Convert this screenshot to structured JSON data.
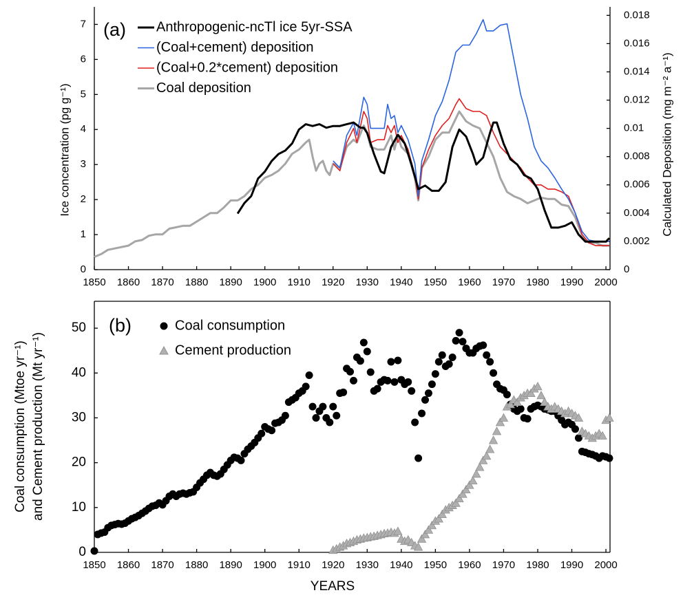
{
  "chart_data": [
    {
      "type": "line",
      "panel_label": "(a)",
      "ylabel": "Ice concentration (pg g⁻¹)",
      "y2label": "Calculated Deposition (mg m⁻² a⁻¹)",
      "xlim": [
        1850,
        2001.2
      ],
      "xticks": [
        1850,
        1860,
        1870,
        1880,
        1890,
        1900,
        1910,
        1920,
        1930,
        1940,
        1950,
        1960,
        1970,
        1980,
        1990,
        2000
      ],
      "ylim": [
        0,
        7.5
      ],
      "yticks": [
        0,
        1,
        2,
        3,
        4,
        5,
        6,
        7
      ],
      "y2lim": [
        0,
        0.0186
      ],
      "y2ticks": [
        0,
        0.002,
        0.004,
        0.006,
        0.008,
        0.01,
        0.012,
        0.014,
        0.016,
        0.018
      ],
      "legend": "upper left",
      "series": [
        {
          "name": "Anthropogenic-ncTl ice 5yr-SSA",
          "color": "#000000",
          "axis": "y",
          "x": [
            1892,
            1894,
            1896,
            1898,
            1900,
            1902,
            1904,
            1906,
            1908,
            1910,
            1912,
            1914,
            1916,
            1918,
            1920,
            1922,
            1924,
            1926,
            1928,
            1929,
            1930,
            1932,
            1934,
            1935,
            1937,
            1939,
            1941,
            1943,
            1945,
            1947,
            1949,
            1951,
            1953,
            1955,
            1957,
            1959,
            1961,
            1962,
            1964,
            1966,
            1967,
            1968,
            1970,
            1972,
            1974,
            1976,
            1978,
            1980,
            1982,
            1984,
            1986,
            1988,
            1990,
            1992,
            1994,
            1996,
            1998,
            2000,
            2001
          ],
          "values": [
            1.6,
            1.9,
            2.1,
            2.6,
            2.8,
            3.1,
            3.3,
            3.4,
            3.6,
            4.0,
            4.15,
            4.1,
            4.15,
            4.05,
            4.1,
            4.1,
            4.15,
            4.2,
            4.05,
            4.05,
            3.9,
            3.3,
            2.8,
            2.75,
            3.5,
            3.85,
            3.6,
            3.0,
            2.3,
            2.4,
            2.25,
            2.25,
            2.5,
            3.5,
            4.0,
            3.8,
            3.3,
            3.0,
            3.2,
            3.9,
            4.2,
            4.2,
            3.6,
            3.15,
            3.0,
            2.7,
            2.6,
            2.3,
            1.7,
            1.2,
            1.2,
            1.25,
            1.35,
            1.0,
            0.8,
            0.8,
            0.8,
            0.8,
            0.9
          ]
        },
        {
          "name": "(Coal+cement) deposition",
          "color": "#2a64e0",
          "axis": "y2",
          "x": [
            1920,
            1922,
            1924,
            1926,
            1927,
            1929,
            1930,
            1931,
            1933,
            1935,
            1936,
            1937,
            1938,
            1939,
            1940,
            1942,
            1944,
            1945,
            1946,
            1948,
            1950,
            1952,
            1954,
            1956,
            1958,
            1960,
            1962,
            1964,
            1965,
            1967,
            1969,
            1971,
            1973,
            1975,
            1977,
            1979,
            1981,
            1983,
            1985,
            1987,
            1989,
            1991,
            1993,
            1995,
            1997,
            1999,
            2001
          ],
          "values": [
            0.0077,
            0.0072,
            0.0095,
            0.0104,
            0.0095,
            0.0122,
            0.0117,
            0.01,
            0.01,
            0.01,
            0.0117,
            0.0107,
            0.0109,
            0.0097,
            0.0102,
            0.0092,
            0.0075,
            0.0052,
            0.0077,
            0.0092,
            0.0109,
            0.0119,
            0.0134,
            0.0154,
            0.0159,
            0.0159,
            0.0167,
            0.0177,
            0.0169,
            0.0169,
            0.0173,
            0.0174,
            0.0149,
            0.0124,
            0.0107,
            0.0087,
            0.0077,
            0.0072,
            0.0065,
            0.0057,
            0.005,
            0.004,
            0.0027,
            0.0021,
            0.002,
            0.002,
            0.002
          ]
        },
        {
          "name": "(Coal+0.2*cement) deposition",
          "color": "#e01f1f",
          "axis": "y2",
          "x": [
            1920,
            1922,
            1924,
            1926,
            1927,
            1929,
            1930,
            1931,
            1933,
            1935,
            1936,
            1937,
            1938,
            1939,
            1940,
            1942,
            1944,
            1945,
            1946,
            1948,
            1950,
            1952,
            1954,
            1956,
            1957,
            1959,
            1961,
            1963,
            1965,
            1967,
            1969,
            1971,
            1973,
            1975,
            1977,
            1979,
            1981,
            1983,
            1985,
            1987,
            1989,
            1991,
            1993,
            1995,
            1997,
            1999,
            2001
          ],
          "values": [
            0.0075,
            0.007,
            0.009,
            0.01,
            0.009,
            0.0112,
            0.0107,
            0.009,
            0.0092,
            0.0092,
            0.0102,
            0.0097,
            0.0102,
            0.009,
            0.0095,
            0.0085,
            0.0067,
            0.005,
            0.0072,
            0.0085,
            0.0095,
            0.0102,
            0.0107,
            0.0117,
            0.0121,
            0.0114,
            0.0112,
            0.0112,
            0.0109,
            0.0097,
            0.0087,
            0.0082,
            0.0077,
            0.0072,
            0.0065,
            0.006,
            0.006,
            0.0057,
            0.0057,
            0.0055,
            0.0052,
            0.004,
            0.0025,
            0.0019,
            0.0017,
            0.0017,
            0.0017
          ]
        },
        {
          "name": "Coal deposition",
          "color": "#a6a6a6",
          "axis": "y2",
          "x": [
            1850,
            1852,
            1854,
            1856,
            1858,
            1860,
            1862,
            1864,
            1866,
            1868,
            1870,
            1872,
            1874,
            1876,
            1878,
            1880,
            1882,
            1884,
            1886,
            1888,
            1890,
            1892,
            1894,
            1896,
            1898,
            1900,
            1902,
            1904,
            1906,
            1908,
            1910,
            1912,
            1913,
            1914,
            1915,
            1916,
            1917,
            1918,
            1919,
            1920,
            1922,
            1924,
            1926,
            1927,
            1929,
            1930,
            1931,
            1933,
            1935,
            1937,
            1938,
            1939,
            1940,
            1942,
            1944,
            1945,
            1946,
            1948,
            1950,
            1952,
            1954,
            1956,
            1957,
            1959,
            1961,
            1963,
            1965,
            1967,
            1969,
            1971,
            1973,
            1975,
            1977,
            1979,
            1981,
            1983,
            1985,
            1987,
            1989,
            1991,
            1993,
            1995,
            1997,
            1999,
            2001
          ],
          "values": [
            0.0009,
            0.0011,
            0.0014,
            0.0015,
            0.0016,
            0.0017,
            0.002,
            0.0021,
            0.0024,
            0.0025,
            0.0025,
            0.0029,
            0.003,
            0.0031,
            0.0031,
            0.0034,
            0.0037,
            0.004,
            0.004,
            0.0044,
            0.0049,
            0.0049,
            0.0052,
            0.0057,
            0.006,
            0.0065,
            0.0067,
            0.007,
            0.0075,
            0.0082,
            0.0085,
            0.009,
            0.0092,
            0.008,
            0.007,
            0.0075,
            0.0077,
            0.007,
            0.0067,
            0.0075,
            0.0072,
            0.0087,
            0.0092,
            0.009,
            0.0102,
            0.0097,
            0.0087,
            0.0085,
            0.0085,
            0.0095,
            0.0085,
            0.0095,
            0.0087,
            0.0082,
            0.0065,
            0.0049,
            0.0072,
            0.008,
            0.0092,
            0.0097,
            0.0097,
            0.0107,
            0.0112,
            0.0105,
            0.0102,
            0.01,
            0.009,
            0.008,
            0.0065,
            0.0055,
            0.0052,
            0.005,
            0.0047,
            0.0049,
            0.0051,
            0.005,
            0.005,
            0.0046,
            0.0045,
            0.0037,
            0.0024,
            0.0019,
            0.0019,
            0.0017,
            0.0017
          ]
        }
      ]
    },
    {
      "type": "scatter",
      "panel_label": "(b)",
      "ylabel": [
        "Coal consumption (Mtoe yr⁻¹)",
        "and Cement production (Mt yr⁻¹)"
      ],
      "xlabel": "YEARS",
      "xlim": [
        1850,
        2001.2
      ],
      "xticks": [
        1850,
        1860,
        1870,
        1880,
        1890,
        1900,
        1910,
        1920,
        1930,
        1940,
        1950,
        1960,
        1970,
        1980,
        1990,
        2000
      ],
      "ylim": [
        0,
        56
      ],
      "yticks": [
        0,
        10,
        20,
        30,
        40,
        50
      ],
      "legend": "upper left",
      "series": [
        {
          "name": "Coal consumption",
          "color": "#000000",
          "marker": "circle",
          "x": [
            1850,
            1851,
            1852,
            1853,
            1854,
            1855,
            1856,
            1857,
            1858,
            1859,
            1860,
            1861,
            1862,
            1863,
            1864,
            1865,
            1866,
            1867,
            1868,
            1869,
            1870,
            1871,
            1872,
            1873,
            1874,
            1875,
            1876,
            1877,
            1878,
            1879,
            1880,
            1881,
            1882,
            1883,
            1884,
            1885,
            1886,
            1887,
            1888,
            1889,
            1890,
            1891,
            1892,
            1893,
            1894,
            1895,
            1896,
            1897,
            1898,
            1899,
            1900,
            1901,
            1902,
            1903,
            1904,
            1905,
            1906,
            1907,
            1908,
            1909,
            1910,
            1911,
            1912,
            1913,
            1914,
            1915,
            1916,
            1917,
            1918,
            1919,
            1920,
            1921,
            1922,
            1923,
            1924,
            1925,
            1926,
            1927,
            1928,
            1929,
            1930,
            1931,
            1932,
            1933,
            1934,
            1935,
            1936,
            1937,
            1938,
            1939,
            1940,
            1941,
            1942,
            1943,
            1944,
            1945,
            1946,
            1947,
            1948,
            1949,
            1950,
            1951,
            1952,
            1953,
            1954,
            1955,
            1956,
            1957,
            1958,
            1959,
            1960,
            1961,
            1962,
            1963,
            1964,
            1965,
            1966,
            1967,
            1968,
            1969,
            1970,
            1971,
            1972,
            1973,
            1974,
            1975,
            1976,
            1977,
            1978,
            1979,
            1980,
            1981,
            1982,
            1983,
            1984,
            1985,
            1986,
            1987,
            1988,
            1989,
            1990,
            1991,
            1992,
            1993,
            1994,
            1995,
            1996,
            1997,
            1998,
            1999,
            2000,
            2001
          ],
          "values": [
            0.3,
            4,
            4.3,
            4.5,
            5.5,
            6,
            6.2,
            6.4,
            6.3,
            6.5,
            7,
            7.5,
            7.8,
            8.2,
            8.7,
            9.2,
            9.8,
            10.3,
            10.5,
            11,
            10.6,
            11.5,
            12.5,
            13,
            12.5,
            13,
            13.2,
            13,
            13.3,
            13.5,
            14.5,
            15.5,
            16.3,
            17.2,
            17.8,
            17.2,
            17,
            17.5,
            18.5,
            19.5,
            20.5,
            21.2,
            21,
            20.5,
            22,
            23,
            23.7,
            24.5,
            25.5,
            26.5,
            28,
            27.5,
            27.2,
            28.8,
            29,
            29.5,
            30.5,
            33.5,
            34,
            34.5,
            35.5,
            36,
            37,
            39.5,
            32.5,
            30,
            31.5,
            32.5,
            30,
            29,
            32.5,
            30.5,
            35.5,
            35.7,
            41,
            40.3,
            38.3,
            43.5,
            42.7,
            46.8,
            44.8,
            40.2,
            36,
            36.5,
            38,
            38.5,
            38.3,
            42.5,
            38,
            42.8,
            38.5,
            37.5,
            38,
            36,
            29,
            21,
            31,
            34,
            35.5,
            37.5,
            39.8,
            42.5,
            44,
            41.5,
            42,
            43.5,
            47.2,
            49,
            47,
            45.5,
            44.5,
            44.5,
            45.5,
            46,
            46.2,
            44,
            42.5,
            40,
            37.5,
            36.5,
            36.2,
            35.2,
            33,
            32,
            31.5,
            32,
            30,
            29.8,
            32,
            32.5,
            32.8,
            32.5,
            32,
            31.8,
            31.5,
            31.5,
            30.5,
            29.5,
            28.5,
            29,
            28.5,
            27.5,
            25.5,
            22.5,
            22.3,
            22,
            21.8,
            21.5,
            21,
            21.5,
            21.3,
            21
          ]
        },
        {
          "name": "Cement production",
          "color": "#b0b0b0",
          "marker": "triangle",
          "x": [
            1920,
            1921,
            1922,
            1923,
            1924,
            1925,
            1926,
            1927,
            1928,
            1929,
            1930,
            1931,
            1932,
            1933,
            1934,
            1935,
            1936,
            1937,
            1938,
            1939,
            1940,
            1941,
            1942,
            1943,
            1944,
            1945,
            1946,
            1947,
            1948,
            1949,
            1950,
            1951,
            1952,
            1953,
            1954,
            1955,
            1956,
            1957,
            1958,
            1959,
            1960,
            1961,
            1962,
            1963,
            1964,
            1965,
            1966,
            1967,
            1968,
            1969,
            1970,
            1971,
            1972,
            1973,
            1974,
            1975,
            1976,
            1977,
            1978,
            1979,
            1980,
            1981,
            1982,
            1983,
            1984,
            1985,
            1986,
            1987,
            1988,
            1989,
            1990,
            1991,
            1992,
            1993,
            1994,
            1995,
            1996,
            1997,
            1998,
            1999,
            2000,
            2001
          ],
          "values": [
            0.5,
            0.8,
            1.2,
            1.5,
            2,
            2.2,
            2.5,
            2.8,
            3,
            3.2,
            3.3,
            3.5,
            3.6,
            3.8,
            4,
            4.2,
            4.3,
            4.5,
            4.3,
            4.7,
            3,
            2.5,
            2.8,
            2.2,
            1.5,
            1.2,
            3,
            4,
            5,
            6,
            7,
            7.5,
            8.5,
            9.5,
            10,
            10.5,
            11,
            12,
            13,
            14,
            15,
            16,
            17.5,
            19,
            20.5,
            21.5,
            23,
            25,
            27,
            29,
            30,
            32.5,
            33,
            34,
            33.5,
            34.5,
            35,
            35.5,
            35.5,
            36.5,
            37,
            35,
            33.5,
            32.5,
            32,
            32.5,
            32,
            31.5,
            31,
            31.5,
            31,
            30.5,
            30,
            27,
            26.5,
            26,
            25.5,
            26,
            26.5,
            26,
            29.5,
            30
          ]
        }
      ]
    }
  ]
}
